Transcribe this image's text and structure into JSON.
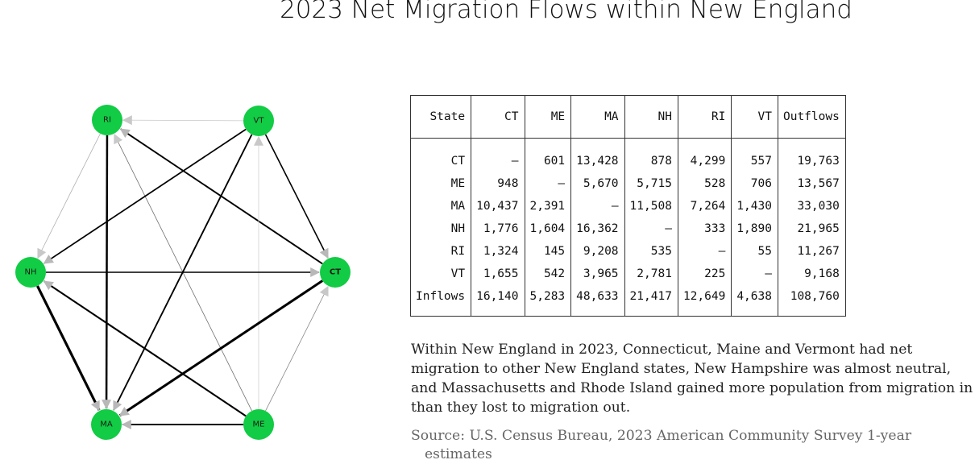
{
  "title": "2023 Net Migration Flows within New England",
  "network": {
    "nodes": [
      {
        "id": "RI",
        "label": "RI",
        "color": "#11cc44"
      },
      {
        "id": "VT",
        "label": "VT",
        "color": "#11cc44"
      },
      {
        "id": "NH",
        "label": "NH",
        "color": "#11cc44"
      },
      {
        "id": "CT",
        "label": "CT",
        "color": "#11cc44"
      },
      {
        "id": "MA",
        "label": "MA",
        "color": "#11cc44"
      },
      {
        "id": "ME",
        "label": "ME",
        "color": "#11cc44"
      }
    ],
    "edges": [
      {
        "from": "VT",
        "to": "RI",
        "weight": 225,
        "color": "#c8c8c8"
      },
      {
        "from": "CT",
        "to": "RI",
        "weight": 4299,
        "color": "#000000"
      },
      {
        "from": "RI",
        "to": "NH",
        "weight": 535,
        "color": "#b0b0b0"
      },
      {
        "from": "RI",
        "to": "MA",
        "weight": 9208,
        "color": "#000000"
      },
      {
        "from": "ME",
        "to": "RI",
        "weight": 528,
        "color": "#707070"
      },
      {
        "from": "VT",
        "to": "NH",
        "weight": 2781,
        "color": "#000000"
      },
      {
        "from": "VT",
        "to": "CT",
        "weight": 1655,
        "color": "#000000"
      },
      {
        "from": "VT",
        "to": "MA",
        "weight": 3965,
        "color": "#000000"
      },
      {
        "from": "ME",
        "to": "VT",
        "weight": 706,
        "color": "#d0d0d0"
      },
      {
        "from": "NH",
        "to": "CT",
        "weight": 1776,
        "color": "#000000"
      },
      {
        "from": "NH",
        "to": "MA",
        "weight": 16362,
        "color": "#000000"
      },
      {
        "from": "ME",
        "to": "NH",
        "weight": 5715,
        "color": "#000000"
      },
      {
        "from": "CT",
        "to": "MA",
        "weight": 13428,
        "color": "#000000"
      },
      {
        "from": "ME",
        "to": "CT",
        "weight": 948,
        "color": "#888888"
      },
      {
        "from": "ME",
        "to": "MA",
        "weight": 5670,
        "color": "#000000"
      }
    ]
  },
  "table": {
    "headers": [
      "State",
      "CT",
      "ME",
      "MA",
      "NH",
      "RI",
      "VT",
      "Outflows"
    ],
    "rows": [
      [
        "CT",
        "—",
        "601",
        "13,428",
        "878",
        "4,299",
        "557",
        "19,763"
      ],
      [
        "ME",
        "948",
        "—",
        "5,670",
        "5,715",
        "528",
        "706",
        "13,567"
      ],
      [
        "MA",
        "10,437",
        "2,391",
        "—",
        "11,508",
        "7,264",
        "1,430",
        "33,030"
      ],
      [
        "NH",
        "1,776",
        "1,604",
        "16,362",
        "—",
        "333",
        "1,890",
        "21,965"
      ],
      [
        "RI",
        "1,324",
        "145",
        "9,208",
        "535",
        "—",
        "55",
        "11,267"
      ],
      [
        "VT",
        "1,655",
        "542",
        "3,965",
        "2,781",
        "225",
        "—",
        "9,168"
      ],
      [
        "Inflows",
        "16,140",
        "5,283",
        "48,633",
        "21,417",
        "12,649",
        "4,638",
        "108,760"
      ]
    ]
  },
  "caption": "Within New England in 2023, Connecticut, Maine and Vermont had net migration to other New England states, New Hampshire was almost neutral, and Massachusetts and Rhode Island gained more population from migration in than they lost to migration out.",
  "source_line1": "Source: U.S. Census Bureau, 2023 American Community Survey 1-year",
  "source_line2": "estimates"
}
